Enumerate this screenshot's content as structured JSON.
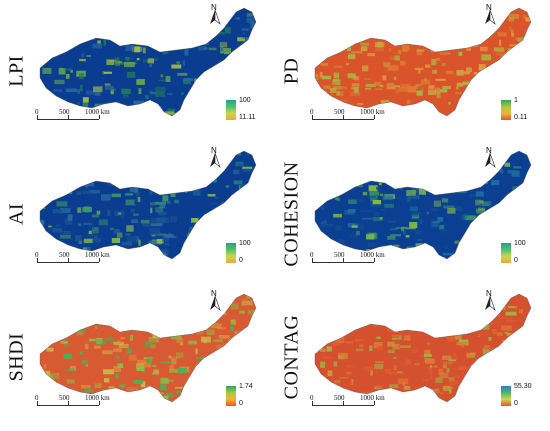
{
  "panels": [
    {
      "id": "lpi",
      "label": "LPI",
      "legend_max": "100",
      "legend_min": "11.11",
      "base_color": "#0a3d8f",
      "mottle": [
        "#1f7a5a",
        "#6aa84f",
        "#a6c13a",
        "#2c6e9e"
      ],
      "ramp": [
        "#1fa38a",
        "#4fc36b",
        "#c9d84a",
        "#f0a53a"
      ]
    },
    {
      "id": "pd",
      "label": "PD",
      "legend_max": "1",
      "legend_min": "0.11",
      "base_color": "#d9532b",
      "mottle": [
        "#e07b33",
        "#c9a43c",
        "#a8b843",
        "#e69a44"
      ],
      "ramp": [
        "#2fa55a",
        "#a8c83e",
        "#f0b43a",
        "#e4552c"
      ]
    },
    {
      "id": "ai",
      "label": "AI",
      "legend_max": "100",
      "legend_min": "0",
      "base_color": "#0a3d8f",
      "mottle": [
        "#2a6e9c",
        "#3f9a6a",
        "#8fbf4a",
        "#1a5592"
      ],
      "ramp": [
        "#1fa38a",
        "#4fc36b",
        "#c9d84a",
        "#f0a53a"
      ]
    },
    {
      "id": "cohesion",
      "label": "COHESION",
      "legend_max": "100",
      "legend_min": "0",
      "base_color": "#0b3f92",
      "mottle": [
        "#1e6ea0",
        "#3a9a64",
        "#8ac046",
        "#14508f"
      ],
      "ramp": [
        "#1fa38a",
        "#4fc36b",
        "#c9d84a",
        "#f0a53a"
      ]
    },
    {
      "id": "shdi",
      "label": "SHDI",
      "legend_max": "1.74",
      "legend_min": "0",
      "base_color": "#d75a32",
      "mottle": [
        "#8dbf49",
        "#4fae5a",
        "#c9b84a",
        "#e38a3c"
      ],
      "ramp": [
        "#2fa55a",
        "#a8c83e",
        "#f0b43a",
        "#e4552c"
      ]
    },
    {
      "id": "contag",
      "label": "CONTAG",
      "legend_max": "55.30",
      "legend_min": "0",
      "base_color": "#d4502e",
      "mottle": [
        "#df7a36",
        "#c99a3e",
        "#9fb646",
        "#e05c30"
      ],
      "ramp": [
        "#2f7fc4",
        "#4fb36b",
        "#c9d84a",
        "#e4552c"
      ]
    }
  ],
  "scale": {
    "t0": "0",
    "t1": "500",
    "t2": "1000 km"
  },
  "north": {
    "letter": "N"
  }
}
